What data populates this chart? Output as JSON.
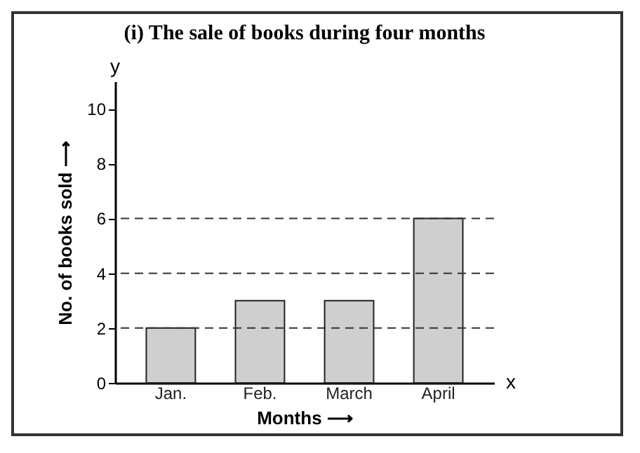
{
  "chart_data": {
    "type": "bar",
    "title": "(i) The sale of books during four months",
    "xlabel": "Months ⟶",
    "ylabel": "No. of books sold ⟶",
    "categories": [
      "Jan.",
      "Feb.",
      "March",
      "April"
    ],
    "values": [
      2,
      3,
      3,
      6
    ],
    "color": "#cfcfcf",
    "ylim": [
      0,
      11
    ],
    "yticks": [
      0,
      2,
      4,
      6,
      8,
      10
    ],
    "grid": false,
    "ref_lines": [
      {
        "axis": "y",
        "value": 2,
        "line_style": "dashed"
      },
      {
        "axis": "y",
        "value": 4,
        "line_style": "dashed"
      },
      {
        "axis": "y",
        "value": 6,
        "line_style": "dashed"
      }
    ],
    "annotations": [
      "y",
      "x"
    ]
  }
}
